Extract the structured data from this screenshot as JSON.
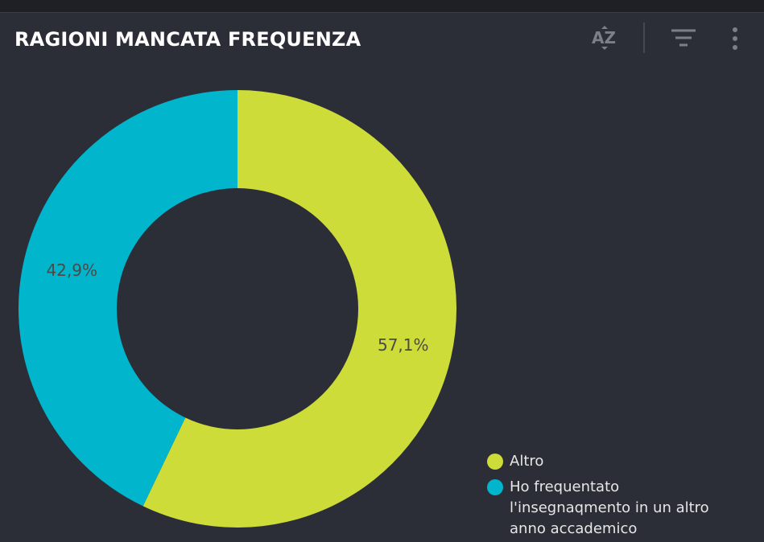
{
  "chart_data": {
    "type": "donut",
    "title": "RAGIONI MANCATA FREQUENZA",
    "categories": [
      "Altro",
      "Ho frequentato l'insegnaqmento in un altro anno accademico"
    ],
    "values": [
      57.1,
      42.9
    ],
    "value_labels": [
      "57,1%",
      "42,9%"
    ],
    "colors": [
      "#cddc39",
      "#00b5cc"
    ]
  }
}
